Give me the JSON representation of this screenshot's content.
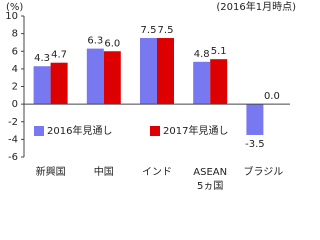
{
  "chart_data": {
    "type": "bar",
    "y_label": "(%)",
    "note": "(2016年1月時点)",
    "categories": [
      "新興国",
      "中国",
      "インド",
      "ASEAN\n5ヵ国",
      "ブラジル"
    ],
    "series": [
      {
        "name": "2016年見通し",
        "color": "#7878f0",
        "values": [
          4.3,
          6.3,
          7.5,
          4.8,
          -3.5
        ],
        "value_labels": [
          "4.3",
          "6.3",
          "7.5",
          "4.8",
          "-3.5"
        ]
      },
      {
        "name": "2017年見通し",
        "color": "#dd0000",
        "values": [
          4.7,
          6.0,
          7.5,
          5.1,
          0.0
        ],
        "value_labels": [
          "4.7",
          "6.0",
          "7.5",
          "5.1",
          "0.0"
        ]
      }
    ],
    "ylim": [
      -6,
      10
    ],
    "yticks": [
      -6,
      -4,
      -2,
      0,
      2,
      4,
      6,
      8,
      10
    ],
    "negative_label_color": "#e03030",
    "legend": "bottom-left",
    "grid": false
  }
}
